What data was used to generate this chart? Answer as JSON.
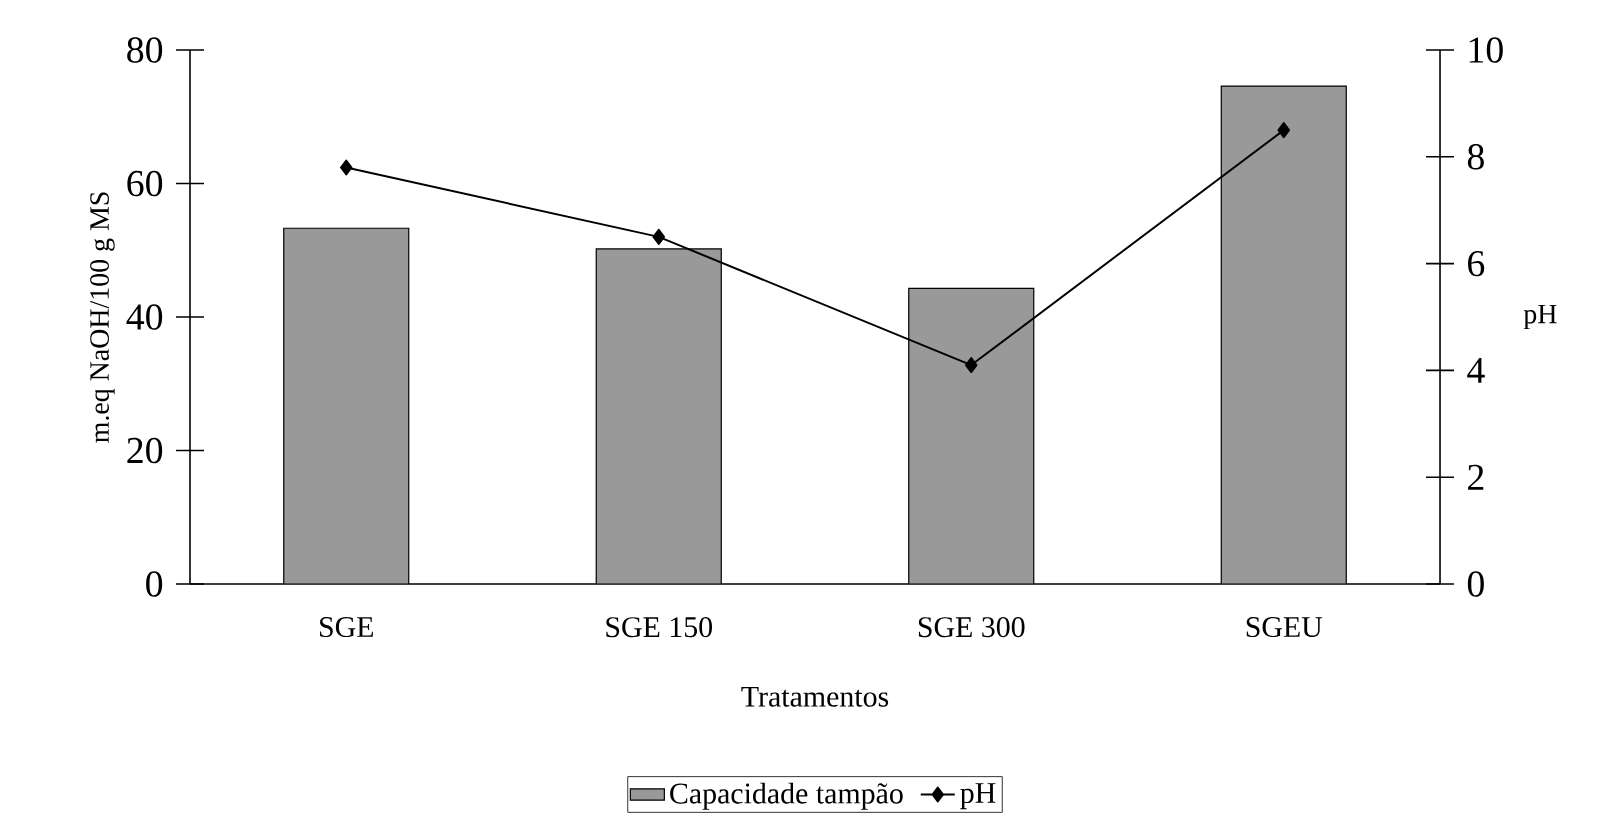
{
  "chart_data": {
    "type": "bar",
    "xlabel": "Tratamentos",
    "ylabel": "m.eq NaOH/100 g MS",
    "y2label": "pH",
    "categories": [
      "SGE",
      "SGE 150",
      "SGE 300",
      "SGEU"
    ],
    "series": [
      {
        "name": "Capacidade tampão",
        "color": "#999999",
        "values": [
          53.3,
          50.2,
          44.3,
          74.6
        ]
      },
      {
        "name": "pH",
        "type": "line",
        "axis": "y2",
        "color": "#000000",
        "marker": "diamond",
        "values": [
          7.8,
          6.5,
          4.1,
          8.5
        ]
      }
    ],
    "ylim": [
      0,
      80
    ],
    "yticks": [
      0,
      20,
      40,
      60,
      80
    ],
    "y2lim": [
      0,
      10
    ],
    "y2ticks": [
      0,
      2,
      4,
      6,
      8,
      10
    ],
    "legend": "bottom"
  }
}
